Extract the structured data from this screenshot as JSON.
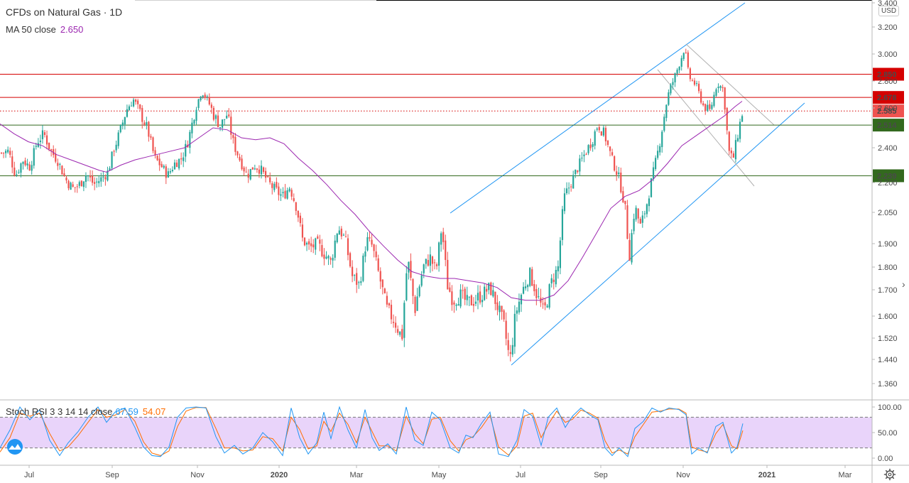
{
  "header": {
    "symbol_title": "CFDs on Natural Gas · 1D",
    "ma_label": "MA 50 close",
    "ma_value": "2.650",
    "currency": "USD"
  },
  "stoch": {
    "label": "Stoch RSI 3 3 14 14 close",
    "k_value": "67.59",
    "d_value": "54.07",
    "k_color": "#2196f3",
    "d_color": "#ff6d00",
    "band_fill": "#e9d4fa",
    "upper": 80,
    "lower": 20,
    "ticks": [
      "100.00",
      "50.00",
      "0.00"
    ]
  },
  "colors": {
    "up": "#26a69a",
    "down": "#ef5350",
    "ma": "#9c27b0",
    "channel": "#2196f3",
    "resistance": "#d50000",
    "support": "#33691e",
    "down_channel": "#b0b0b0"
  },
  "chart_data": {
    "type": "candlestick",
    "title": "CFDs on Natural Gas · 1D",
    "price_ticks": [
      "3.400",
      "3.200",
      "3.000",
      "2.800",
      "2.600",
      "2.400",
      "2.200",
      "2.050",
      "1.900",
      "1.800",
      "1.700",
      "1.600",
      "1.520",
      "1.440",
      "1.360"
    ],
    "price_tick_values": [
      3.4,
      3.2,
      3.0,
      2.8,
      2.6,
      2.4,
      2.2,
      2.05,
      1.9,
      1.8,
      1.7,
      1.6,
      1.52,
      1.44,
      1.36
    ],
    "x_labels": [
      "Jul",
      "Sep",
      "Nov",
      "2020",
      "Mar",
      "May",
      "Jul",
      "Sep",
      "Nov",
      "2021",
      "Mar"
    ],
    "x_label_bold": [
      false,
      false,
      false,
      true,
      false,
      false,
      false,
      false,
      false,
      true,
      false
    ],
    "levels": [
      {
        "label": "2.850",
        "value": 2.85,
        "kind": "resistance",
        "style": "solid"
      },
      {
        "label": "2.678",
        "value": 2.678,
        "kind": "resistance",
        "style": "solid"
      },
      {
        "label": "2.585",
        "value": 2.585,
        "kind": "resistance",
        "style": "dotted"
      },
      {
        "label": "2.514",
        "value": 2.514,
        "kind": "support",
        "style": "solid"
      },
      {
        "label": "2.239",
        "value": 2.239,
        "kind": "support",
        "style": "solid"
      }
    ],
    "close_path": [
      [
        0,
        2.37
      ],
      [
        12,
        2.38
      ],
      [
        22,
        2.24
      ],
      [
        32,
        2.33
      ],
      [
        42,
        2.29
      ],
      [
        52,
        2.43
      ],
      [
        62,
        2.47
      ],
      [
        72,
        2.38
      ],
      [
        82,
        2.32
      ],
      [
        92,
        2.22
      ],
      [
        102,
        2.17
      ],
      [
        112,
        2.19
      ],
      [
        122,
        2.25
      ],
      [
        132,
        2.19
      ],
      [
        142,
        2.22
      ],
      [
        152,
        2.26
      ],
      [
        160,
        2.39
      ],
      [
        168,
        2.47
      ],
      [
        178,
        2.59
      ],
      [
        188,
        2.66
      ],
      [
        198,
        2.57
      ],
      [
        208,
        2.49
      ],
      [
        218,
        2.34
      ],
      [
        228,
        2.29
      ],
      [
        236,
        2.24
      ],
      [
        246,
        2.31
      ],
      [
        256,
        2.34
      ],
      [
        266,
        2.45
      ],
      [
        276,
        2.61
      ],
      [
        284,
        2.73
      ],
      [
        292,
        2.66
      ],
      [
        300,
        2.57
      ],
      [
        310,
        2.51
      ],
      [
        320,
        2.57
      ],
      [
        328,
        2.43
      ],
      [
        338,
        2.33
      ],
      [
        348,
        2.24
      ],
      [
        358,
        2.3
      ],
      [
        368,
        2.27
      ],
      [
        378,
        2.2
      ],
      [
        388,
        2.16
      ],
      [
        398,
        2.13
      ],
      [
        408,
        2.18
      ],
      [
        418,
        2.07
      ],
      [
        426,
        1.92
      ],
      [
        436,
        1.88
      ],
      [
        446,
        1.9
      ],
      [
        456,
        1.86
      ],
      [
        466,
        1.82
      ],
      [
        476,
        1.98
      ],
      [
        486,
        1.92
      ],
      [
        496,
        1.76
      ],
      [
        506,
        1.72
      ],
      [
        516,
        1.92
      ],
      [
        524,
        1.89
      ],
      [
        534,
        1.76
      ],
      [
        544,
        1.63
      ],
      [
        556,
        1.58
      ],
      [
        566,
        1.52
      ],
      [
        574,
        1.84
      ],
      [
        584,
        1.62
      ],
      [
        596,
        1.8
      ],
      [
        606,
        1.84
      ],
      [
        614,
        1.78
      ],
      [
        622,
        1.98
      ],
      [
        630,
        1.72
      ],
      [
        638,
        1.66
      ],
      [
        648,
        1.68
      ],
      [
        658,
        1.65
      ],
      [
        668,
        1.66
      ],
      [
        678,
        1.68
      ],
      [
        690,
        1.71
      ],
      [
        700,
        1.64
      ],
      [
        710,
        1.56
      ],
      [
        718,
        1.43
      ],
      [
        726,
        1.61
      ],
      [
        736,
        1.7
      ],
      [
        746,
        1.77
      ],
      [
        756,
        1.68
      ],
      [
        766,
        1.61
      ],
      [
        776,
        1.73
      ],
      [
        786,
        1.8
      ],
      [
        794,
        2.12
      ],
      [
        804,
        2.2
      ],
      [
        814,
        2.29
      ],
      [
        824,
        2.37
      ],
      [
        834,
        2.44
      ],
      [
        842,
        2.52
      ],
      [
        852,
        2.46
      ],
      [
        862,
        2.33
      ],
      [
        872,
        2.22
      ],
      [
        880,
        2.08
      ],
      [
        886,
        1.84
      ],
      [
        894,
        2.08
      ],
      [
        902,
        1.98
      ],
      [
        910,
        2.08
      ],
      [
        918,
        2.22
      ],
      [
        926,
        2.37
      ],
      [
        934,
        2.53
      ],
      [
        942,
        2.72
      ],
      [
        950,
        2.83
      ],
      [
        958,
        2.95
      ],
      [
        964,
        3.05
      ],
      [
        970,
        2.83
      ],
      [
        980,
        2.77
      ],
      [
        990,
        2.62
      ],
      [
        1000,
        2.58
      ],
      [
        1010,
        2.79
      ],
      [
        1018,
        2.74
      ],
      [
        1026,
        2.38
      ],
      [
        1032,
        2.33
      ],
      [
        1040,
        2.49
      ],
      [
        1046,
        2.585
      ]
    ],
    "ma50_path": [
      [
        0,
        2.52
      ],
      [
        20,
        2.47
      ],
      [
        40,
        2.43
      ],
      [
        60,
        2.41
      ],
      [
        80,
        2.36
      ],
      [
        100,
        2.33
      ],
      [
        120,
        2.3
      ],
      [
        140,
        2.27
      ],
      [
        150,
        2.26
      ],
      [
        170,
        2.3
      ],
      [
        190,
        2.33
      ],
      [
        210,
        2.35
      ],
      [
        230,
        2.37
      ],
      [
        260,
        2.4
      ],
      [
        280,
        2.45
      ],
      [
        300,
        2.5
      ],
      [
        320,
        2.49
      ],
      [
        340,
        2.45
      ],
      [
        360,
        2.44
      ],
      [
        380,
        2.45
      ],
      [
        400,
        2.42
      ],
      [
        420,
        2.34
      ],
      [
        440,
        2.27
      ],
      [
        460,
        2.19
      ],
      [
        480,
        2.11
      ],
      [
        500,
        2.04
      ],
      [
        520,
        1.96
      ],
      [
        540,
        1.89
      ],
      [
        560,
        1.83
      ],
      [
        580,
        1.78
      ],
      [
        600,
        1.76
      ],
      [
        620,
        1.75
      ],
      [
        640,
        1.75
      ],
      [
        660,
        1.74
      ],
      [
        680,
        1.73
      ],
      [
        700,
        1.71
      ],
      [
        720,
        1.67
      ],
      [
        740,
        1.66
      ],
      [
        760,
        1.66
      ],
      [
        780,
        1.68
      ],
      [
        800,
        1.74
      ],
      [
        820,
        1.84
      ],
      [
        840,
        1.95
      ],
      [
        860,
        2.07
      ],
      [
        880,
        2.13
      ],
      [
        900,
        2.16
      ],
      [
        920,
        2.22
      ],
      [
        940,
        2.31
      ],
      [
        960,
        2.41
      ],
      [
        980,
        2.46
      ],
      [
        1000,
        2.51
      ],
      [
        1020,
        2.56
      ],
      [
        1035,
        2.61
      ],
      [
        1045,
        2.65
      ]
    ],
    "stoch_k_path": [
      [
        0,
        20
      ],
      [
        14,
        55
      ],
      [
        28,
        100
      ],
      [
        42,
        75
      ],
      [
        56,
        95
      ],
      [
        70,
        35
      ],
      [
        84,
        5
      ],
      [
        96,
        30
      ],
      [
        110,
        52
      ],
      [
        124,
        80
      ],
      [
        138,
        100
      ],
      [
        150,
        70
      ],
      [
        162,
        90
      ],
      [
        176,
        98
      ],
      [
        190,
        60
      ],
      [
        202,
        22
      ],
      [
        214,
        5
      ],
      [
        226,
        3
      ],
      [
        238,
        22
      ],
      [
        250,
        80
      ],
      [
        262,
        98
      ],
      [
        276,
        100
      ],
      [
        290,
        98
      ],
      [
        304,
        42
      ],
      [
        316,
        10
      ],
      [
        330,
        25
      ],
      [
        342,
        8
      ],
      [
        356,
        20
      ],
      [
        370,
        50
      ],
      [
        384,
        32
      ],
      [
        398,
        5
      ],
      [
        410,
        98
      ],
      [
        422,
        40
      ],
      [
        434,
        8
      ],
      [
        446,
        30
      ],
      [
        456,
        90
      ],
      [
        466,
        38
      ],
      [
        478,
        100
      ],
      [
        490,
        55
      ],
      [
        502,
        20
      ],
      [
        514,
        95
      ],
      [
        524,
        40
      ],
      [
        534,
        15
      ],
      [
        546,
        28
      ],
      [
        558,
        8
      ],
      [
        572,
        100
      ],
      [
        584,
        35
      ],
      [
        596,
        25
      ],
      [
        608,
        90
      ],
      [
        620,
        75
      ],
      [
        634,
        20
      ],
      [
        646,
        10
      ],
      [
        656,
        45
      ],
      [
        666,
        40
      ],
      [
        678,
        68
      ],
      [
        690,
        90
      ],
      [
        702,
        8
      ],
      [
        716,
        3
      ],
      [
        728,
        35
      ],
      [
        738,
        95
      ],
      [
        750,
        82
      ],
      [
        762,
        25
      ],
      [
        772,
        80
      ],
      [
        784,
        98
      ],
      [
        796,
        60
      ],
      [
        806,
        82
      ],
      [
        818,
        98
      ],
      [
        830,
        85
      ],
      [
        842,
        75
      ],
      [
        852,
        20
      ],
      [
        862,
        5
      ],
      [
        872,
        20
      ],
      [
        884,
        3
      ],
      [
        894,
        58
      ],
      [
        906,
        72
      ],
      [
        918,
        98
      ],
      [
        930,
        90
      ],
      [
        942,
        98
      ],
      [
        956,
        95
      ],
      [
        966,
        85
      ],
      [
        974,
        8
      ],
      [
        984,
        20
      ],
      [
        996,
        10
      ],
      [
        1008,
        62
      ],
      [
        1018,
        70
      ],
      [
        1030,
        10
      ],
      [
        1038,
        22
      ],
      [
        1046,
        67.59
      ]
    ],
    "stoch_d_path": [
      [
        0,
        12
      ],
      [
        14,
        40
      ],
      [
        28,
        88
      ],
      [
        42,
        82
      ],
      [
        56,
        88
      ],
      [
        70,
        48
      ],
      [
        84,
        14
      ],
      [
        96,
        22
      ],
      [
        110,
        44
      ],
      [
        124,
        70
      ],
      [
        138,
        95
      ],
      [
        150,
        80
      ],
      [
        162,
        84
      ],
      [
        176,
        95
      ],
      [
        190,
        72
      ],
      [
        202,
        32
      ],
      [
        214,
        10
      ],
      [
        226,
        5
      ],
      [
        238,
        14
      ],
      [
        250,
        62
      ],
      [
        262,
        92
      ],
      [
        276,
        99
      ],
      [
        290,
        99
      ],
      [
        304,
        58
      ],
      [
        316,
        20
      ],
      [
        330,
        20
      ],
      [
        342,
        14
      ],
      [
        356,
        16
      ],
      [
        370,
        42
      ],
      [
        384,
        38
      ],
      [
        398,
        14
      ],
      [
        410,
        80
      ],
      [
        422,
        56
      ],
      [
        434,
        18
      ],
      [
        446,
        24
      ],
      [
        456,
        72
      ],
      [
        466,
        52
      ],
      [
        478,
        88
      ],
      [
        490,
        66
      ],
      [
        502,
        30
      ],
      [
        514,
        80
      ],
      [
        524,
        52
      ],
      [
        534,
        24
      ],
      [
        546,
        24
      ],
      [
        558,
        14
      ],
      [
        572,
        82
      ],
      [
        584,
        48
      ],
      [
        596,
        28
      ],
      [
        608,
        76
      ],
      [
        620,
        80
      ],
      [
        634,
        34
      ],
      [
        646,
        14
      ],
      [
        656,
        36
      ],
      [
        666,
        42
      ],
      [
        678,
        60
      ],
      [
        690,
        84
      ],
      [
        702,
        22
      ],
      [
        716,
        6
      ],
      [
        728,
        24
      ],
      [
        738,
        82
      ],
      [
        750,
        88
      ],
      [
        762,
        40
      ],
      [
        772,
        66
      ],
      [
        784,
        92
      ],
      [
        796,
        70
      ],
      [
        806,
        76
      ],
      [
        818,
        94
      ],
      [
        830,
        88
      ],
      [
        842,
        78
      ],
      [
        852,
        34
      ],
      [
        862,
        10
      ],
      [
        872,
        16
      ],
      [
        884,
        8
      ],
      [
        894,
        42
      ],
      [
        906,
        66
      ],
      [
        918,
        90
      ],
      [
        930,
        92
      ],
      [
        942,
        96
      ],
      [
        956,
        96
      ],
      [
        966,
        88
      ],
      [
        974,
        22
      ],
      [
        984,
        16
      ],
      [
        996,
        12
      ],
      [
        1008,
        48
      ],
      [
        1018,
        66
      ],
      [
        1030,
        24
      ],
      [
        1038,
        18
      ],
      [
        1046,
        54.07
      ]
    ]
  }
}
